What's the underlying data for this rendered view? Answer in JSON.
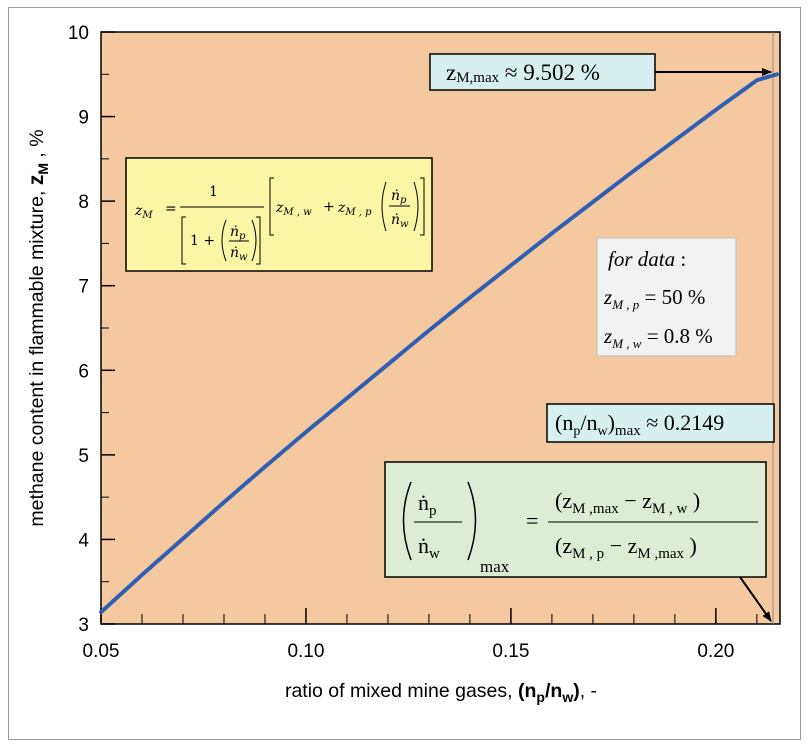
{
  "chart_data": {
    "type": "line",
    "xlabel": {
      "prefix": "ratio of mixed mine gases,  ",
      "paren_open": "(",
      "symbol_main": "n",
      "symbol_sub_1": "p",
      "slash": "/",
      "symbol_main_2": "n",
      "symbol_sub_2": "w",
      "paren_close": ")",
      "suffix": ", -"
    },
    "ylabel": {
      "prefix": "methane content in flammable mixture, ",
      "symbol_main": "z",
      "symbol_sub": "M",
      "suffix": " , %"
    },
    "xlim": [
      0.05,
      0.2149
    ],
    "ylim": [
      3,
      10
    ],
    "xticks": [
      0.05,
      0.1,
      0.15,
      0.2
    ],
    "xtick_labels": [
      "0.05",
      "0.10",
      "0.15",
      "0.20"
    ],
    "yticks": [
      3,
      4,
      5,
      6,
      7,
      8,
      9,
      10
    ],
    "ytick_labels": [
      "3",
      "4",
      "5",
      "6",
      "7",
      "8",
      "9",
      "10"
    ],
    "grid": false,
    "series": [
      {
        "x": [
          0.05,
          0.06,
          0.07,
          0.08,
          0.09,
          0.1,
          0.11,
          0.12,
          0.13,
          0.14,
          0.15,
          0.16,
          0.17,
          0.18,
          0.19,
          0.2,
          0.21,
          0.2149
        ],
        "y": [
          3.14,
          3.58,
          4.01,
          4.44,
          4.86,
          5.27,
          5.67,
          6.07,
          6.47,
          6.86,
          7.24,
          7.62,
          7.99,
          8.36,
          8.72,
          9.08,
          9.43,
          9.5
        ]
      }
    ],
    "colors": {
      "plot_bg": "#f5c9a0",
      "line": "#2f5fb5",
      "yellow_box": "#fbf5a6",
      "cyan_box": "#d5f0ee",
      "green_box": "#dcedd3",
      "white_box": "#f2f2f2"
    }
  },
  "annotations": {
    "max_z": {
      "lhs_main": "z",
      "lhs_sub": "M,max",
      "rel": " ≈ 9.502 %"
    },
    "max_ratio": {
      "lhs": "(n",
      "sub_p": "p",
      "mid": "/n",
      "sub_w": "w",
      "close": ")",
      "sub_max": "max",
      "rel": " ≈ 0.2149"
    },
    "data_box": {
      "line1": "for data",
      "colon": " :",
      "line2_main": "z",
      "line2_sub": "M , p",
      "line2_val": " = 50 %",
      "line3_main": "z",
      "line3_sub": "M , w",
      "line3_val": " = 0.8 %"
    },
    "formula_box": {
      "lhs_main": "z",
      "lhs_sub": "M",
      "eq": "=",
      "one": "1",
      "one_plus": "1 +",
      "n": "ṅ",
      "p": "p",
      "w": "w",
      "zMw_main": "z",
      "zMw_sub": "M , w",
      "plus": "+",
      "zMp_main": "z",
      "zMp_sub": "M , p"
    },
    "green_formula": {
      "n": "ṅ",
      "p": "p",
      "w": "w",
      "max": "max",
      "eq": "=",
      "num_open": "(z",
      "num_sub1": "M ,max",
      "num_minus": " − z",
      "num_sub2": "M , w",
      "num_close": " )",
      "den_open": "(z",
      "den_sub1": "M , p",
      "den_minus": " − z",
      "den_sub2": "M ,max",
      "den_close": " )"
    }
  }
}
